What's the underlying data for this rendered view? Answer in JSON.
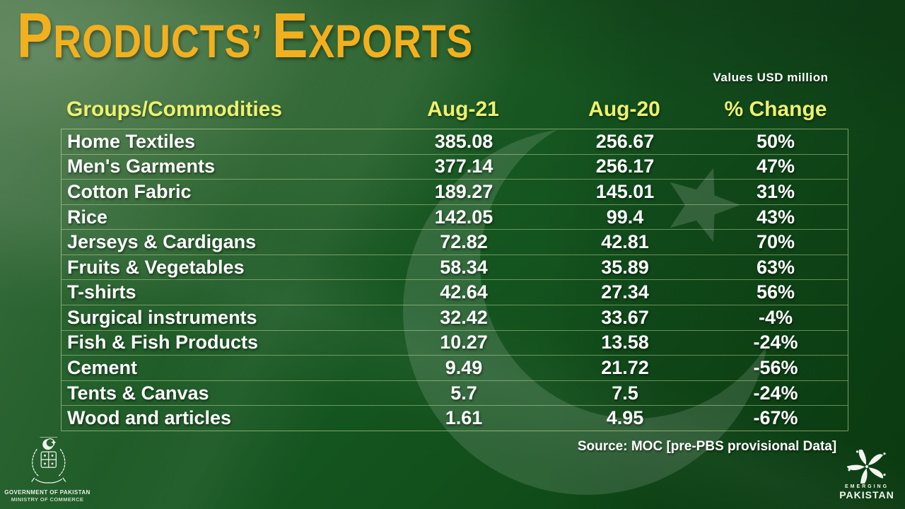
{
  "slide": {
    "title": {
      "full": "Products’ Exports",
      "word1_initial": "P",
      "word1_rest": "RODUCTS’",
      "word2_initial": "E",
      "word2_rest": "XPORTS"
    },
    "unit_note": "Values USD million",
    "source": "Source: MOC [pre-PBS provisional Data]"
  },
  "table": {
    "headers": {
      "commodity": "Groups/Commodities",
      "aug21": "Aug-21",
      "aug20": "Aug-20",
      "change": "% Change"
    },
    "rows": [
      {
        "name": "Home Textiles",
        "aug21": "385.08",
        "aug20": "256.67",
        "change": "50%"
      },
      {
        "name": "Men's Garments",
        "aug21": "377.14",
        "aug20": "256.17",
        "change": "47%"
      },
      {
        "name": "Cotton Fabric",
        "aug21": "189.27",
        "aug20": "145.01",
        "change": "31%"
      },
      {
        "name": "Rice",
        "aug21": "142.05",
        "aug20": "99.4",
        "change": "43%"
      },
      {
        "name": "Jerseys & Cardigans",
        "aug21": "72.82",
        "aug20": "42.81",
        "change": "70%"
      },
      {
        "name": "Fruits & Vegetables",
        "aug21": "58.34",
        "aug20": "35.89",
        "change": "63%"
      },
      {
        "name": "T-shirts",
        "aug21": "42.64",
        "aug20": "27.34",
        "change": "56%"
      },
      {
        "name": "Surgical instruments",
        "aug21": "32.42",
        "aug20": "33.67",
        "change": "-4%"
      },
      {
        "name": "Fish & Fish Products",
        "aug21": "10.27",
        "aug20": "13.58",
        "change": "-24%"
      },
      {
        "name": "Cement",
        "aug21": "9.49",
        "aug20": "21.72",
        "change": "-56%"
      },
      {
        "name": "Tents & Canvas",
        "aug21": "5.7",
        "aug20": "7.5",
        "change": "-24%"
      },
      {
        "name": "Wood and articles",
        "aug21": "1.61",
        "aug20": "4.95",
        "change": "-67%"
      }
    ]
  },
  "footer": {
    "government": {
      "emblem_icon": "pakistan-state-emblem",
      "line1": "GOVERNMENT OF PAKISTAN",
      "line2": "MINISTRY OF COMMERCE"
    },
    "branding": {
      "logo_icon": "emerging-pakistan-swirl",
      "line1": "EMERGING",
      "line2": "PAKISTAN"
    }
  },
  "colors": {
    "title_gold": "#F2B01E",
    "header_yellow": "#EDF26E",
    "body_text": "#FFFFFF",
    "background_green": "#155520",
    "table_border": "#D8E9A6",
    "watermark_white": "rgba(255,255,255,0.13)"
  },
  "chart_data": {
    "type": "table",
    "title": "Products' Exports",
    "unit": "Values USD million",
    "columns": [
      "Groups/Commodities",
      "Aug-21",
      "Aug-20",
      "% Change"
    ],
    "rows": [
      [
        "Home Textiles",
        385.08,
        256.67,
        "50%"
      ],
      [
        "Men's Garments",
        377.14,
        256.17,
        "47%"
      ],
      [
        "Cotton Fabric",
        189.27,
        145.01,
        "31%"
      ],
      [
        "Rice",
        142.05,
        99.4,
        "43%"
      ],
      [
        "Jerseys & Cardigans",
        72.82,
        42.81,
        "70%"
      ],
      [
        "Fruits & Vegetables",
        58.34,
        35.89,
        "63%"
      ],
      [
        "T-shirts",
        42.64,
        27.34,
        "56%"
      ],
      [
        "Surgical instruments",
        32.42,
        33.67,
        "-4%"
      ],
      [
        "Fish & Fish Products",
        10.27,
        13.58,
        "-24%"
      ],
      [
        "Cement",
        9.49,
        21.72,
        "-56%"
      ],
      [
        "Tents & Canvas",
        5.7,
        7.5,
        "-24%"
      ],
      [
        "Wood and articles",
        1.61,
        4.95,
        "-67%"
      ]
    ],
    "source": "Source: MOC [pre-PBS provisional Data]"
  }
}
